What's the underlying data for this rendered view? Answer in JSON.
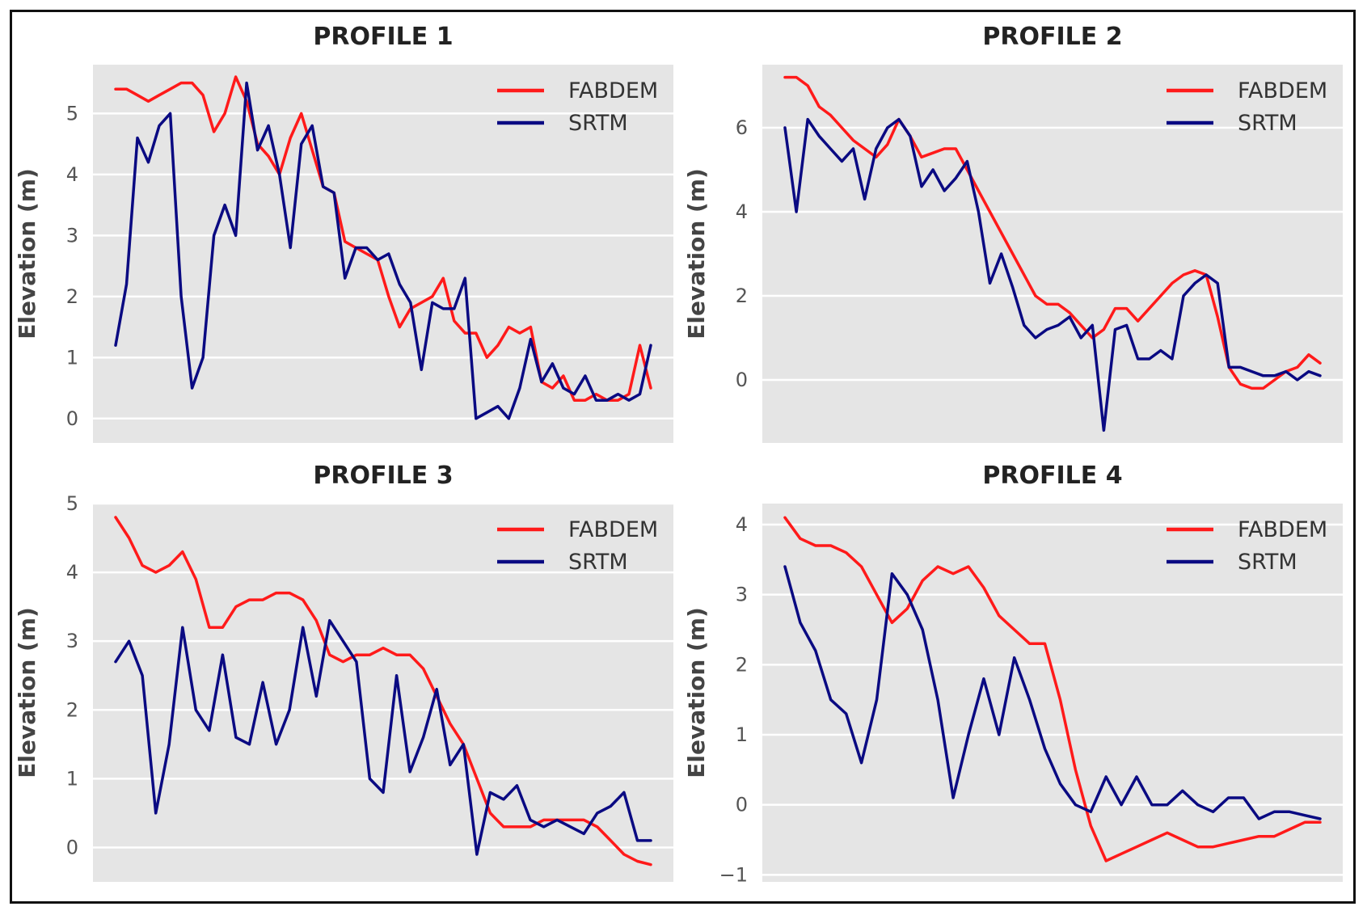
{
  "chart_data": [
    {
      "type": "line",
      "title": "PROFILE 1",
      "xlabel": "",
      "ylabel": "Elevation (m)",
      "ylim": [
        -0.4,
        5.8
      ],
      "yticks": [
        0,
        1,
        2,
        3,
        4,
        5
      ],
      "grid": true,
      "legend_position": "top-right",
      "series": [
        {
          "name": "FABDEM",
          "color": "#ff1a1a",
          "values": [
            5.4,
            5.4,
            5.3,
            5.2,
            5.3,
            5.4,
            5.5,
            5.5,
            5.3,
            4.7,
            5.0,
            5.6,
            5.2,
            4.5,
            4.3,
            4.0,
            4.6,
            5.0,
            4.4,
            3.8,
            3.7,
            2.9,
            2.8,
            2.7,
            2.6,
            2.0,
            1.5,
            1.8,
            1.9,
            2.0,
            2.3,
            1.6,
            1.4,
            1.4,
            1.0,
            1.2,
            1.5,
            1.4,
            1.5,
            0.6,
            0.5,
            0.7,
            0.3,
            0.3,
            0.4,
            0.3,
            0.3,
            0.4,
            1.2,
            0.5
          ]
        },
        {
          "name": "SRTM",
          "color": "#0a0a82",
          "values": [
            1.2,
            2.2,
            4.6,
            4.2,
            4.8,
            5.0,
            2.0,
            0.5,
            1.0,
            3.0,
            3.5,
            3.0,
            5.5,
            4.4,
            4.8,
            4.0,
            2.8,
            4.5,
            4.8,
            3.8,
            3.7,
            2.3,
            2.8,
            2.8,
            2.6,
            2.7,
            2.2,
            1.9,
            0.8,
            1.9,
            1.8,
            1.8,
            2.3,
            0.0,
            0.1,
            0.2,
            0.0,
            0.5,
            1.3,
            0.6,
            0.9,
            0.5,
            0.4,
            0.7,
            0.3,
            0.3,
            0.4,
            0.3,
            0.4,
            1.2
          ]
        }
      ]
    },
    {
      "type": "line",
      "title": "PROFILE 2",
      "xlabel": "",
      "ylabel": "Elevation (m)",
      "ylim": [
        -1.5,
        7.5
      ],
      "yticks": [
        0,
        2,
        4,
        6
      ],
      "grid": true,
      "legend_position": "top-right",
      "series": [
        {
          "name": "FABDEM",
          "color": "#ff1a1a",
          "values": [
            7.2,
            7.2,
            7.0,
            6.5,
            6.3,
            6.0,
            5.7,
            5.5,
            5.3,
            5.6,
            6.2,
            5.8,
            5.3,
            5.4,
            5.5,
            5.5,
            5.0,
            4.5,
            4.0,
            3.5,
            3.0,
            2.5,
            2.0,
            1.8,
            1.8,
            1.6,
            1.3,
            1.0,
            1.2,
            1.7,
            1.7,
            1.4,
            1.7,
            2.0,
            2.3,
            2.5,
            2.6,
            2.5,
            1.5,
            0.3,
            -0.1,
            -0.2,
            -0.2,
            0.0,
            0.2,
            0.3,
            0.6,
            0.4
          ]
        },
        {
          "name": "SRTM",
          "color": "#0a0a82",
          "values": [
            6.0,
            4.0,
            6.2,
            5.8,
            5.5,
            5.2,
            5.5,
            4.3,
            5.5,
            6.0,
            6.2,
            5.8,
            4.6,
            5.0,
            4.5,
            4.8,
            5.2,
            4.0,
            2.3,
            3.0,
            2.2,
            1.3,
            1.0,
            1.2,
            1.3,
            1.5,
            1.0,
            1.3,
            -1.2,
            1.2,
            1.3,
            0.5,
            0.5,
            0.7,
            0.5,
            2.0,
            2.3,
            2.5,
            2.3,
            0.3,
            0.3,
            0.2,
            0.1,
            0.1,
            0.2,
            0.0,
            0.2,
            0.1
          ]
        }
      ]
    },
    {
      "type": "line",
      "title": "PROFILE 3",
      "xlabel": "",
      "ylabel": "Elevation (m)",
      "ylim": [
        -0.5,
        5.0
      ],
      "yticks": [
        0,
        1,
        2,
        3,
        4,
        5
      ],
      "grid": true,
      "legend_position": "top-right",
      "series": [
        {
          "name": "FABDEM",
          "color": "#ff1a1a",
          "values": [
            4.8,
            4.5,
            4.1,
            4.0,
            4.1,
            4.3,
            3.9,
            3.2,
            3.2,
            3.5,
            3.6,
            3.6,
            3.7,
            3.7,
            3.6,
            3.3,
            2.8,
            2.7,
            2.8,
            2.8,
            2.9,
            2.8,
            2.8,
            2.6,
            2.2,
            1.8,
            1.5,
            1.0,
            0.5,
            0.3,
            0.3,
            0.3,
            0.4,
            0.4,
            0.4,
            0.4,
            0.3,
            0.1,
            -0.1,
            -0.2,
            -0.25
          ]
        },
        {
          "name": "SRTM",
          "color": "#0a0a82",
          "values": [
            2.7,
            3.0,
            2.5,
            0.5,
            1.5,
            3.2,
            2.0,
            1.7,
            2.8,
            1.6,
            1.5,
            2.4,
            1.5,
            2.0,
            3.2,
            2.2,
            3.3,
            3.0,
            2.7,
            1.0,
            0.8,
            2.5,
            1.1,
            1.6,
            2.3,
            1.2,
            1.5,
            -0.1,
            0.8,
            0.7,
            0.9,
            0.4,
            0.3,
            0.4,
            0.3,
            0.2,
            0.5,
            0.6,
            0.8,
            0.1,
            0.1
          ]
        }
      ]
    },
    {
      "type": "line",
      "title": "PROFILE 4",
      "xlabel": "",
      "ylabel": "Elevation (m)",
      "ylim": [
        -1.1,
        4.3
      ],
      "yticks": [
        -1,
        0,
        1,
        2,
        3,
        4
      ],
      "grid": true,
      "legend_position": "top-right",
      "series": [
        {
          "name": "FABDEM",
          "color": "#ff1a1a",
          "values": [
            4.1,
            3.8,
            3.7,
            3.7,
            3.6,
            3.4,
            3.0,
            2.6,
            2.8,
            3.2,
            3.4,
            3.3,
            3.4,
            3.1,
            2.7,
            2.5,
            2.3,
            2.3,
            1.5,
            0.5,
            -0.3,
            -0.8,
            -0.7,
            -0.6,
            -0.5,
            -0.4,
            -0.5,
            -0.6,
            -0.6,
            -0.55,
            -0.5,
            -0.45,
            -0.45,
            -0.35,
            -0.25,
            -0.25
          ]
        },
        {
          "name": "SRTM",
          "color": "#0a0a82",
          "values": [
            3.4,
            2.6,
            2.2,
            1.5,
            1.3,
            0.6,
            1.5,
            3.3,
            3.0,
            2.5,
            1.5,
            0.1,
            1.0,
            1.8,
            1.0,
            2.1,
            1.5,
            0.8,
            0.3,
            0.0,
            -0.1,
            0.4,
            0.0,
            0.4,
            0.0,
            0.0,
            0.2,
            0.0,
            -0.1,
            0.1,
            0.1,
            -0.2,
            -0.1,
            -0.1,
            -0.15,
            -0.2
          ]
        }
      ]
    }
  ]
}
